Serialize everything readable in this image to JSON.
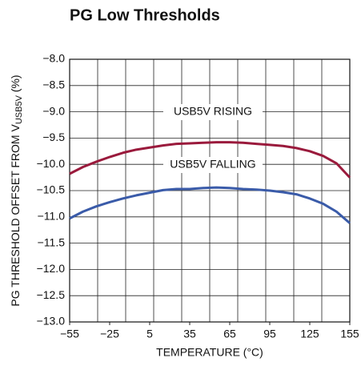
{
  "chart_data": {
    "type": "line",
    "title": "PG Low Thresholds",
    "x_label": "TEMPERATURE (°C)",
    "y_label": "PG THRESHOLD OFFSET FROM V",
    "y_label_sub": "USB5V",
    "y_label_suffix": " (%)",
    "annotations": [
      "USB5V RISING",
      "USB5V FALLING"
    ],
    "x": [
      -55,
      -45,
      -35,
      -25,
      -15,
      -5,
      5,
      15,
      25,
      35,
      45,
      55,
      65,
      75,
      85,
      95,
      105,
      115,
      125,
      135,
      145,
      155
    ],
    "series": [
      {
        "name": "USB5V RISING",
        "color": "#9a1a3c",
        "values": [
          -10.18,
          -10.05,
          -9.95,
          -9.86,
          -9.78,
          -9.72,
          -9.68,
          -9.64,
          -9.61,
          -9.6,
          -9.59,
          -9.58,
          -9.58,
          -9.59,
          -9.61,
          -9.63,
          -9.65,
          -9.69,
          -9.75,
          -9.84,
          -9.98,
          -10.25
        ]
      },
      {
        "name": "USB5V FALLING",
        "color": "#3a5ba9",
        "values": [
          -11.03,
          -10.9,
          -10.8,
          -10.72,
          -10.65,
          -10.59,
          -10.54,
          -10.49,
          -10.47,
          -10.47,
          -10.45,
          -10.44,
          -10.45,
          -10.47,
          -10.48,
          -10.5,
          -10.53,
          -10.57,
          -10.65,
          -10.75,
          -10.9,
          -11.12
        ]
      }
    ],
    "xlim": [
      -55,
      155
    ],
    "ylim": [
      -13,
      -8
    ],
    "xticks": [
      {
        "value": -55,
        "label": "−55"
      },
      {
        "value": -25,
        "label": "−25"
      },
      5,
      35,
      65,
      95,
      125,
      155
    ],
    "xgrid": [
      -55,
      -34,
      -13,
      8,
      29,
      50,
      71,
      92,
      113,
      134,
      155
    ],
    "yticks": [
      {
        "value": -8,
        "label": "−8.0"
      },
      {
        "value": -8.5,
        "label": "−8.5"
      },
      {
        "value": -9,
        "label": "−9.0"
      },
      {
        "value": -9.5,
        "label": "−9.5"
      },
      {
        "value": -10,
        "label": "−10.0"
      },
      {
        "value": -10.5,
        "label": "−10.5"
      },
      {
        "value": -11,
        "label": "−11.0"
      },
      {
        "value": -11.5,
        "label": "−11.5"
      },
      {
        "value": -12,
        "label": "−12.0"
      },
      {
        "value": -12.5,
        "label": "−12.5"
      },
      {
        "value": -13,
        "label": "−13.0"
      }
    ],
    "grid": true
  }
}
